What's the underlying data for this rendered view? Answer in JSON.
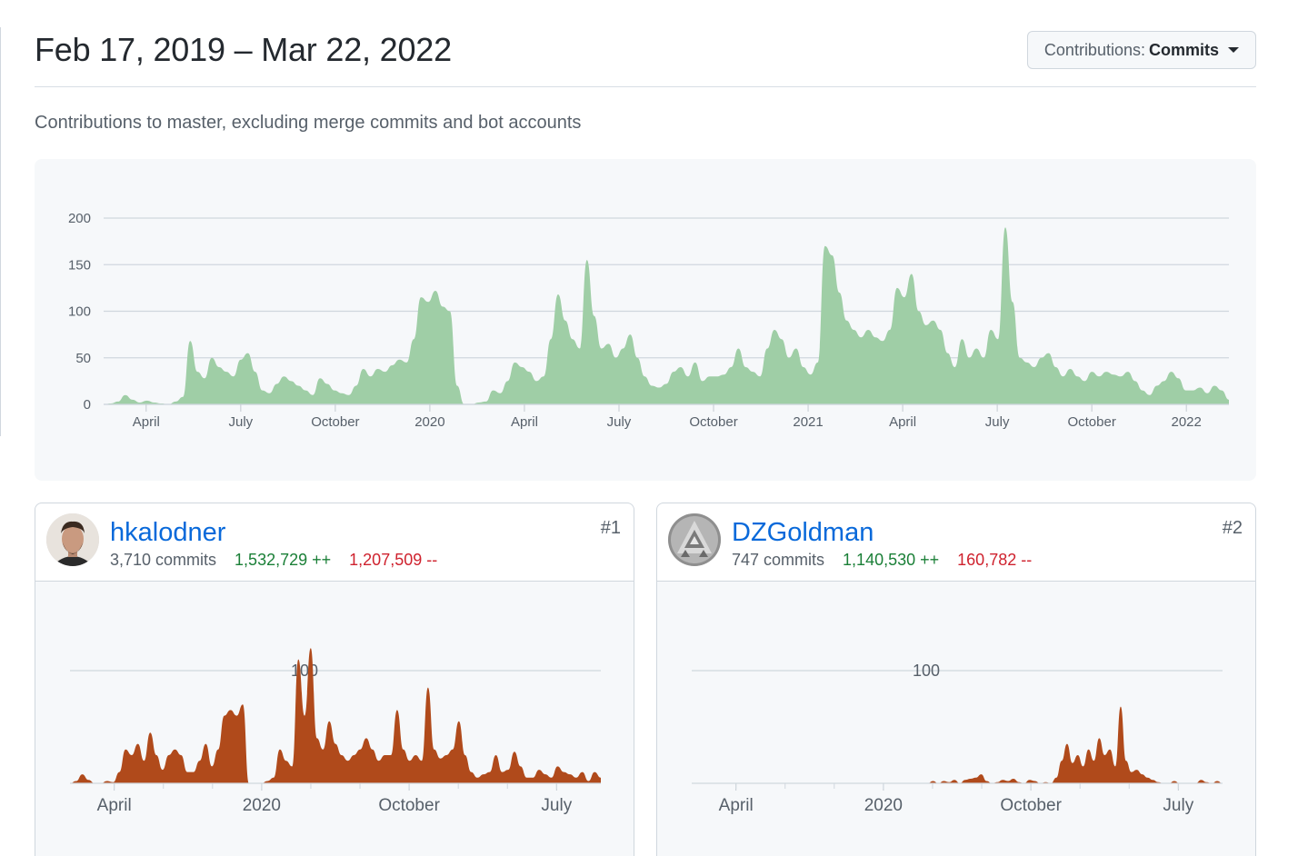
{
  "header": {
    "date_range": "Feb 17, 2019 – Mar 22, 2022",
    "contributions_label": "Contributions:",
    "contributions_value": "Commits"
  },
  "subtitle": "Contributions to master, excluding merge commits and bot accounts",
  "chart_data": [
    {
      "type": "area",
      "title": "",
      "xlabel": "",
      "ylabel": "",
      "ylim": [
        0,
        200
      ],
      "yticks": [
        0,
        50,
        100,
        150,
        200
      ],
      "xticks": [
        "April",
        "July",
        "October",
        "2020",
        "April",
        "July",
        "October",
        "2021",
        "April",
        "July",
        "October",
        "2022"
      ],
      "grid": true,
      "color": "#9fcea6",
      "series": [
        {
          "values": [
            0,
            1,
            3,
            10,
            5,
            2,
            4,
            2,
            1,
            0,
            3,
            8,
            68,
            35,
            28,
            50,
            40,
            35,
            30,
            48,
            55,
            35,
            15,
            12,
            22,
            30,
            25,
            20,
            15,
            10,
            28,
            22,
            15,
            12,
            10,
            20,
            38,
            30,
            38,
            35,
            42,
            48,
            45,
            70,
            115,
            110,
            122,
            105,
            100,
            20,
            0,
            0,
            2,
            3,
            15,
            12,
            25,
            45,
            40,
            35,
            25,
            30,
            70,
            118,
            90,
            70,
            60,
            155,
            95,
            60,
            65,
            50,
            60,
            75,
            50,
            30,
            20,
            18,
            22,
            35,
            40,
            30,
            45,
            25,
            30,
            30,
            32,
            40,
            60,
            40,
            35,
            30,
            60,
            80,
            70,
            50,
            60,
            40,
            32,
            45,
            170,
            160,
            120,
            90,
            80,
            72,
            80,
            72,
            68,
            80,
            125,
            115,
            140,
            100,
            85,
            90,
            80,
            55,
            40,
            70,
            50,
            60,
            50,
            80,
            70,
            190,
            110,
            50,
            45,
            40,
            50,
            55,
            40,
            30,
            38,
            30,
            25,
            35,
            30,
            35,
            32,
            30,
            35,
            25,
            15,
            10,
            20,
            25,
            35,
            28,
            15,
            15,
            18,
            12,
            20,
            15,
            5
          ]
        }
      ]
    },
    {
      "type": "area",
      "title": "",
      "xlabel": "",
      "ylabel": "",
      "ylim": [
        0,
        100
      ],
      "yticks": [
        100
      ],
      "xticks": [
        "April",
        "2020",
        "October",
        "July"
      ],
      "grid": true,
      "color": "#b04a1b",
      "series": [
        {
          "values": [
            0,
            2,
            8,
            3,
            0,
            0,
            2,
            1,
            10,
            30,
            25,
            35,
            20,
            45,
            25,
            12,
            25,
            30,
            25,
            10,
            10,
            20,
            35,
            15,
            30,
            60,
            65,
            60,
            70,
            0,
            0,
            0,
            2,
            5,
            30,
            20,
            15,
            110,
            60,
            120,
            40,
            30,
            55,
            35,
            25,
            20,
            25,
            30,
            40,
            30,
            20,
            25,
            25,
            65,
            30,
            20,
            25,
            20,
            85,
            30,
            22,
            25,
            30,
            55,
            25,
            10,
            5,
            8,
            10,
            25,
            10,
            12,
            28,
            15,
            5,
            5,
            12,
            8,
            5,
            15,
            10,
            8,
            5,
            10,
            2,
            10,
            5
          ]
        }
      ]
    },
    {
      "type": "area",
      "title": "",
      "xlabel": "",
      "ylabel": "",
      "ylim": [
        0,
        100
      ],
      "yticks": [
        100
      ],
      "xticks": [
        "April",
        "2020",
        "October",
        "July"
      ],
      "grid": true,
      "color": "#b04a1b",
      "series": [
        {
          "values": [
            0,
            0,
            0,
            0,
            0,
            0,
            0,
            0,
            0,
            0,
            0,
            0,
            0,
            0,
            0,
            0,
            0,
            0,
            0,
            0,
            0,
            0,
            0,
            0,
            0,
            0,
            0,
            0,
            0,
            0,
            0,
            0,
            0,
            0,
            0,
            0,
            0,
            0,
            0,
            0,
            0,
            0,
            0,
            0,
            0,
            2,
            0,
            2,
            1,
            3,
            0,
            3,
            4,
            5,
            8,
            2,
            0,
            1,
            3,
            2,
            4,
            1,
            0,
            3,
            2,
            0,
            1,
            0,
            5,
            20,
            35,
            18,
            25,
            15,
            30,
            20,
            40,
            25,
            30,
            15,
            68,
            20,
            10,
            12,
            8,
            5,
            3,
            1,
            0,
            0,
            2,
            0,
            0,
            0,
            0,
            3,
            1,
            0,
            2,
            0
          ]
        }
      ]
    }
  ],
  "contributors": [
    {
      "login": "hkalodner",
      "commits": "3,710 commits",
      "additions": "1,532,729 ++",
      "deletions": "1,207,509 --",
      "rank": "#1"
    },
    {
      "login": "DZGoldman",
      "commits": "747 commits",
      "additions": "1,140,530 ++",
      "deletions": "160,782 --",
      "rank": "#2"
    }
  ]
}
